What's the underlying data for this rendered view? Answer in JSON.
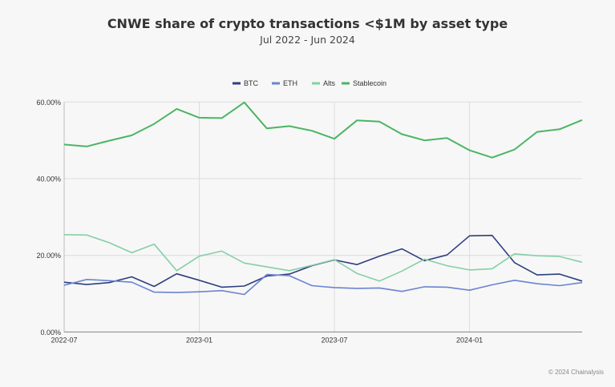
{
  "chart_data": {
    "type": "line",
    "title": "CNWE share of crypto transactions <$1M by asset type",
    "subtitle": "Jul 2022 - Jun 2024",
    "xlabel": "",
    "ylabel": "",
    "ylim": [
      0,
      60
    ],
    "yticks": [
      0,
      20,
      40,
      60
    ],
    "ytick_labels": [
      "0.00%",
      "20.00%",
      "40.00%",
      "60.00%"
    ],
    "xtick_labels": [
      "2022-07",
      "2023-01",
      "2023-07",
      "2024-01"
    ],
    "xtick_index": [
      0,
      6,
      12,
      18
    ],
    "x": [
      "2022-07",
      "2022-08",
      "2022-09",
      "2022-10",
      "2022-11",
      "2022-12",
      "2023-01",
      "2023-02",
      "2023-03",
      "2023-04",
      "2023-05",
      "2023-06",
      "2023-07",
      "2023-08",
      "2023-09",
      "2023-10",
      "2023-11",
      "2023-12",
      "2024-01",
      "2024-02",
      "2024-03",
      "2024-04",
      "2024-05",
      "2024-06"
    ],
    "legend_position": "top-center",
    "grid": true,
    "series": [
      {
        "name": "BTC",
        "color": "#2e3f7f",
        "values": [
          13.0,
          12.4,
          12.9,
          14.4,
          11.9,
          15.2,
          13.5,
          11.7,
          12.0,
          14.6,
          15.1,
          17.3,
          18.8,
          17.6,
          19.8,
          21.7,
          18.6,
          20.1,
          25.1,
          25.2,
          18.1,
          14.9,
          15.1,
          13.3
        ]
      },
      {
        "name": "ETH",
        "color": "#6a84cf",
        "values": [
          12.2,
          13.7,
          13.4,
          13.0,
          10.4,
          10.3,
          10.5,
          10.8,
          9.8,
          15.0,
          14.7,
          12.1,
          11.6,
          11.4,
          11.5,
          10.6,
          11.8,
          11.7,
          10.9,
          12.3,
          13.5,
          12.6,
          12.1,
          12.9
        ]
      },
      {
        "name": "Alts",
        "color": "#86cfa6",
        "values": [
          25.4,
          25.3,
          23.3,
          20.7,
          22.9,
          16.0,
          19.8,
          21.1,
          18.0,
          17.0,
          16.0,
          17.4,
          18.9,
          15.3,
          13.3,
          15.9,
          19.0,
          17.3,
          16.2,
          16.5,
          20.4,
          19.9,
          19.7,
          18.2
        ]
      },
      {
        "name": "Stablecoin",
        "color": "#4cb563",
        "values": [
          48.9,
          48.4,
          49.9,
          51.3,
          54.3,
          58.2,
          55.9,
          55.8,
          59.9,
          53.1,
          53.7,
          52.5,
          50.4,
          55.2,
          54.9,
          51.6,
          50.0,
          50.6,
          47.4,
          45.5,
          47.6,
          52.2,
          52.9,
          55.3
        ]
      }
    ]
  },
  "footer": "© 2024 Chainalysis"
}
